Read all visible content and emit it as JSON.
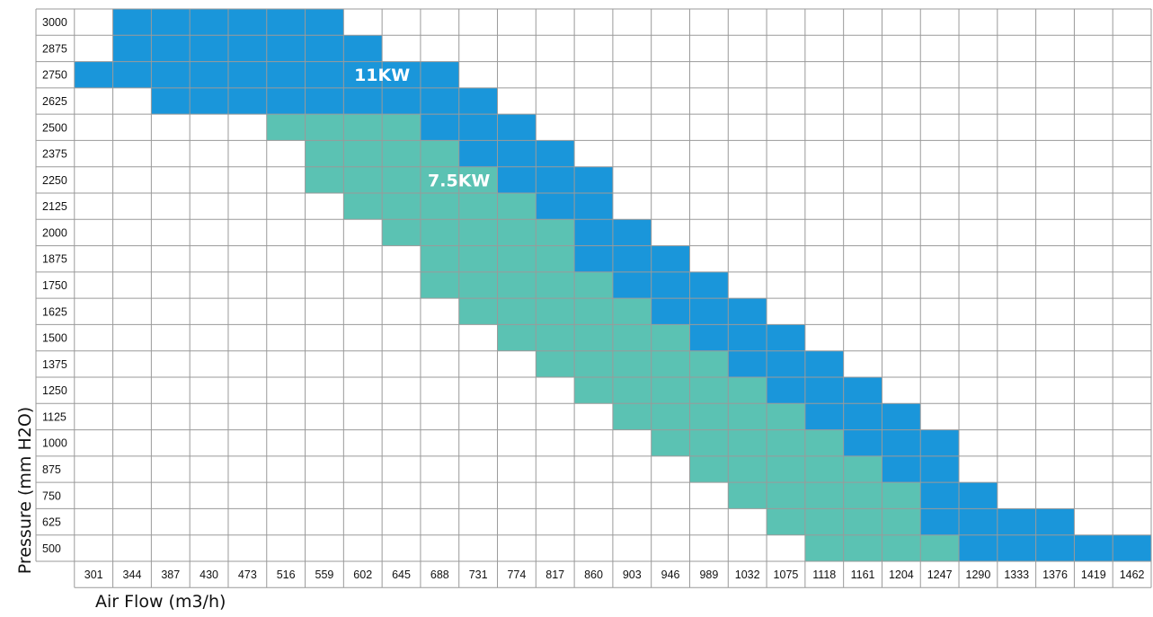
{
  "chart_data": {
    "type": "heatmap",
    "title": "",
    "xlabel": "Air Flow (m3/h)",
    "ylabel": "Pressure (mm H2O)",
    "x": [
      301,
      344,
      387,
      430,
      473,
      516,
      559,
      602,
      645,
      688,
      731,
      774,
      817,
      860,
      903,
      946,
      989,
      1032,
      1075,
      1118,
      1161,
      1204,
      1247,
      1290,
      1333,
      1376,
      1419,
      1462
    ],
    "y": [
      3000,
      2875,
      2750,
      2625,
      2500,
      2375,
      2250,
      2125,
      2000,
      1875,
      1750,
      1625,
      1500,
      1375,
      1250,
      1125,
      1000,
      875,
      750,
      625,
      500
    ],
    "grid": true,
    "series": [
      {
        "name": "11KW",
        "color": "#1a96da",
        "ranges": [
          {
            "pressure": 3000,
            "from": 344,
            "to": 559
          },
          {
            "pressure": 2875,
            "from": 344,
            "to": 602
          },
          {
            "pressure": 2750,
            "from": 301,
            "to": 688
          },
          {
            "pressure": 2625,
            "from": 387,
            "to": 731
          },
          {
            "pressure": 2500,
            "from": 688,
            "to": 774
          },
          {
            "pressure": 2375,
            "from": 731,
            "to": 817
          },
          {
            "pressure": 2250,
            "from": 774,
            "to": 860
          },
          {
            "pressure": 2125,
            "from": 817,
            "to": 860
          },
          {
            "pressure": 2000,
            "from": 860,
            "to": 903
          },
          {
            "pressure": 1875,
            "from": 860,
            "to": 946
          },
          {
            "pressure": 1750,
            "from": 903,
            "to": 989
          },
          {
            "pressure": 1625,
            "from": 946,
            "to": 1032
          },
          {
            "pressure": 1500,
            "from": 989,
            "to": 1075
          },
          {
            "pressure": 1375,
            "from": 1032,
            "to": 1118
          },
          {
            "pressure": 1250,
            "from": 1075,
            "to": 1161
          },
          {
            "pressure": 1125,
            "from": 1118,
            "to": 1204
          },
          {
            "pressure": 1000,
            "from": 1161,
            "to": 1247
          },
          {
            "pressure": 875,
            "from": 1204,
            "to": 1247
          },
          {
            "pressure": 750,
            "from": 1247,
            "to": 1290
          },
          {
            "pressure": 625,
            "from": 1247,
            "to": 1376
          },
          {
            "pressure": 500,
            "from": 1290,
            "to": 1462
          }
        ]
      },
      {
        "name": "7.5KW",
        "color": "#5bc2b3",
        "ranges": [
          {
            "pressure": 2500,
            "from": 516,
            "to": 645
          },
          {
            "pressure": 2375,
            "from": 559,
            "to": 688
          },
          {
            "pressure": 2250,
            "from": 559,
            "to": 731
          },
          {
            "pressure": 2125,
            "from": 602,
            "to": 774
          },
          {
            "pressure": 2000,
            "from": 645,
            "to": 817
          },
          {
            "pressure": 1875,
            "from": 688,
            "to": 817
          },
          {
            "pressure": 1750,
            "from": 688,
            "to": 860
          },
          {
            "pressure": 1625,
            "from": 731,
            "to": 903
          },
          {
            "pressure": 1500,
            "from": 774,
            "to": 946
          },
          {
            "pressure": 1375,
            "from": 817,
            "to": 989
          },
          {
            "pressure": 1250,
            "from": 860,
            "to": 1032
          },
          {
            "pressure": 1125,
            "from": 903,
            "to": 1075
          },
          {
            "pressure": 1000,
            "from": 946,
            "to": 1118
          },
          {
            "pressure": 875,
            "from": 989,
            "to": 1161
          },
          {
            "pressure": 750,
            "from": 1032,
            "to": 1204
          },
          {
            "pressure": 625,
            "from": 1075,
            "to": 1204
          },
          {
            "pressure": 500,
            "from": 1118,
            "to": 1247
          }
        ]
      }
    ],
    "annotations": [
      {
        "text": "11KW",
        "series": "11KW",
        "pressure": 2750,
        "airflow": 645
      },
      {
        "text": "7.5KW",
        "series": "7.5KW",
        "pressure": 2250,
        "airflow": 731
      }
    ]
  }
}
